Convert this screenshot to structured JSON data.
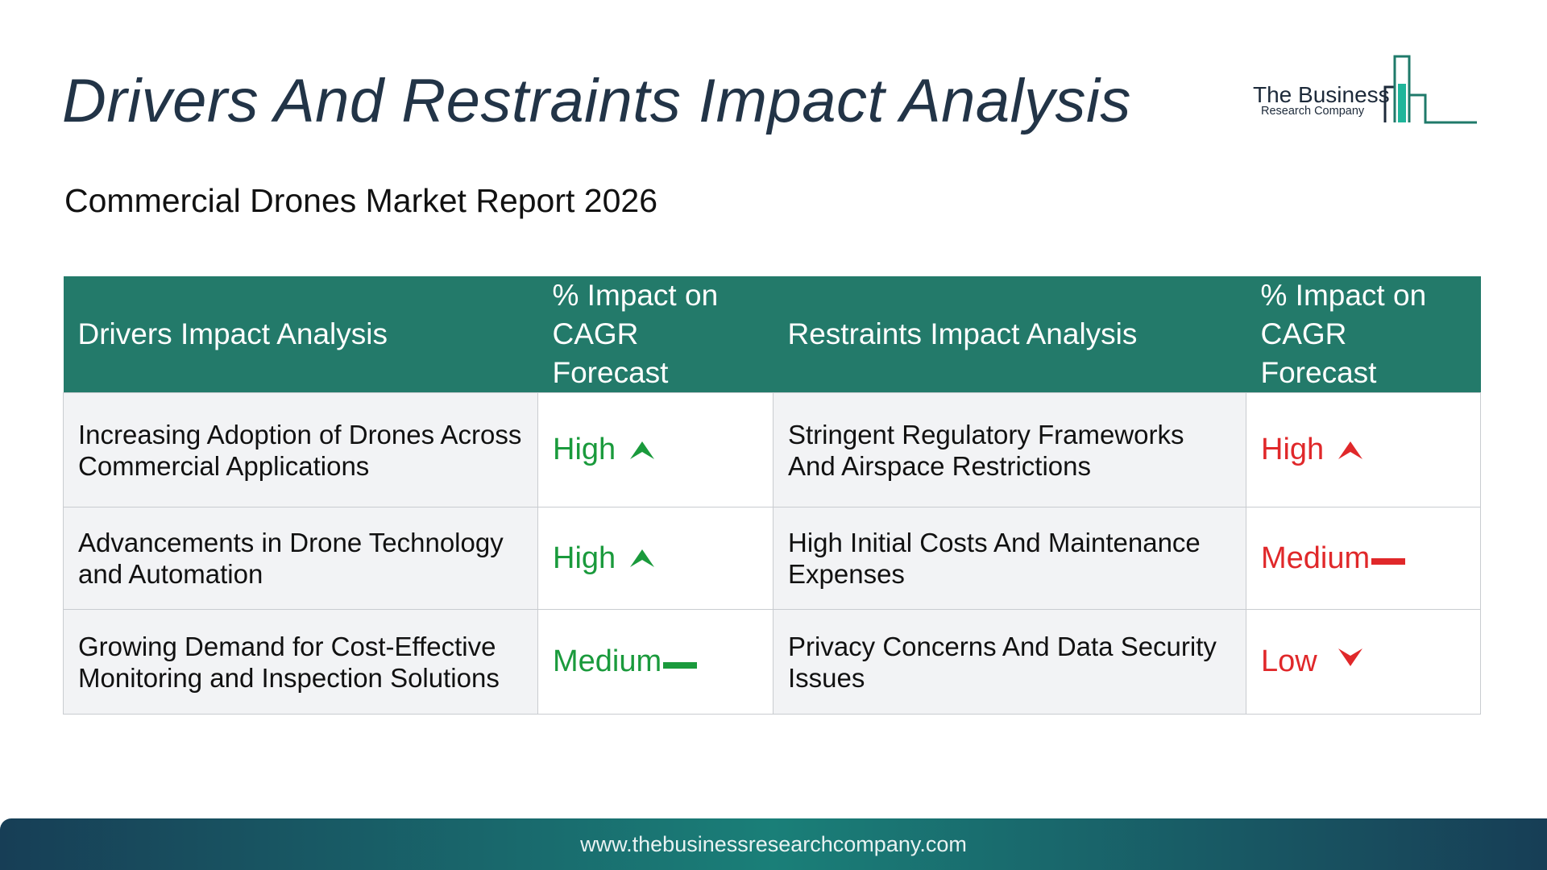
{
  "title": "Drivers And Restraints Impact Analysis",
  "subtitle": "Commercial Drones Market Report 2026",
  "logo": {
    "line1": "The Business",
    "line2": "Research Company"
  },
  "table": {
    "headers": [
      "Drivers Impact Analysis",
      "% Impact on CAGR Forecast",
      "Restraints Impact Analysis",
      "% Impact on CAGR Forecast"
    ],
    "rows": [
      {
        "driver": "Increasing Adoption of Drones Across Commercial Applications",
        "driver_impact": "High",
        "driver_icon": "arrow-up-icon",
        "restraint": "Stringent Regulatory Frameworks And Airspace Restrictions",
        "restraint_impact": "High",
        "restraint_icon": "arrow-up-icon"
      },
      {
        "driver": "Advancements in Drone Technology and Automation",
        "driver_impact": "High",
        "driver_icon": "arrow-up-icon",
        "restraint": "High Initial Costs And Maintenance Expenses",
        "restraint_impact": "Medium",
        "restraint_icon": "dash-icon"
      },
      {
        "driver": "Growing Demand for Cost-Effective Monitoring and Inspection Solutions",
        "driver_impact": "Medium",
        "driver_icon": "dash-icon",
        "restraint": "Privacy Concerns And Data Security Issues",
        "restraint_impact": "Low",
        "restraint_icon": "arrow-down-icon"
      }
    ]
  },
  "footer": {
    "url": "www.thebusinessresearchcompany.com"
  },
  "colors": {
    "title": "#223447",
    "header_bg": "#237a6a",
    "driver_impact": "#1a9a3c",
    "restraint_impact": "#e0282a",
    "desc_bg": "#f2f3f5",
    "border": "#c9ccd0"
  }
}
